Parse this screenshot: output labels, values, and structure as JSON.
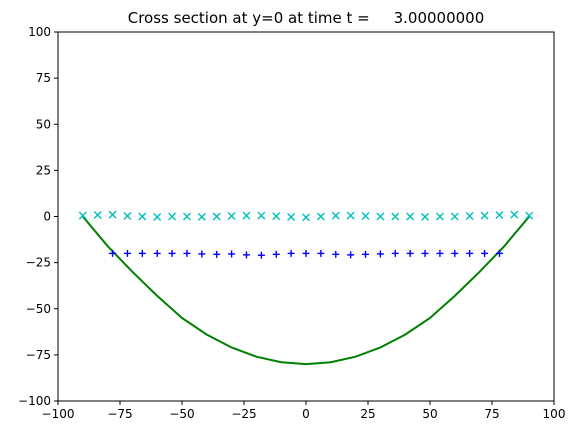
{
  "chart_data": {
    "type": "line",
    "title": "Cross section at y=0 at time t =     3.00000000",
    "xlabel": "",
    "ylabel": "",
    "xlim": [
      -100,
      100
    ],
    "ylim": [
      -100,
      100
    ],
    "xticks": [
      -100,
      -75,
      -50,
      -25,
      0,
      25,
      50,
      75,
      100
    ],
    "yticks": [
      -100,
      -75,
      -50,
      -25,
      0,
      25,
      50,
      75,
      100
    ],
    "grid": false,
    "legend": "none",
    "series": [
      {
        "color": "#008000",
        "style": "line",
        "x": [
          -90,
          -80,
          -70,
          -60,
          -50,
          -40,
          -30,
          -20,
          -10,
          0,
          10,
          20,
          30,
          40,
          50,
          60,
          70,
          80,
          90
        ],
        "y": [
          0,
          -16,
          -30,
          -43,
          -55,
          -64,
          -71,
          -76,
          -79,
          -80,
          -79,
          -76,
          -71,
          -64,
          -55,
          -43,
          -30,
          -16,
          0
        ]
      },
      {
        "color": "#0000ff",
        "style": "markers",
        "marker": "+",
        "x": [
          -78,
          -72,
          -66,
          -60,
          -54,
          -48,
          -42,
          -36,
          -30,
          -24,
          -18,
          -12,
          -6,
          0,
          6,
          12,
          18,
          24,
          30,
          36,
          42,
          48,
          54,
          60,
          66,
          72,
          78
        ],
        "y": [
          -20,
          -20,
          -20,
          -20,
          -20,
          -20,
          -20.3,
          -20.5,
          -20.3,
          -20.8,
          -21,
          -20.5,
          -20,
          -20,
          -20,
          -20.5,
          -20.8,
          -20.5,
          -20.3,
          -20,
          -20,
          -20,
          -20,
          -20,
          -20,
          -20,
          -20
        ]
      },
      {
        "color": "#00bfbf",
        "style": "markers",
        "marker": "x",
        "x": [
          -90,
          -84,
          -78,
          -72,
          -66,
          -60,
          -54,
          -48,
          -42,
          -36,
          -30,
          -24,
          -18,
          -12,
          -6,
          0,
          6,
          12,
          18,
          24,
          30,
          36,
          42,
          48,
          54,
          60,
          66,
          72,
          78,
          84,
          90
        ],
        "y": [
          0.5,
          0.8,
          1,
          0.3,
          0,
          -0.3,
          0,
          0,
          -0.2,
          0,
          0.3,
          0.5,
          0.5,
          0.2,
          -0.3,
          -0.5,
          0,
          0.5,
          0.5,
          0.3,
          0,
          0,
          0,
          -0.2,
          0,
          0,
          0.3,
          0.5,
          0.8,
          1,
          0.5
        ]
      }
    ]
  }
}
